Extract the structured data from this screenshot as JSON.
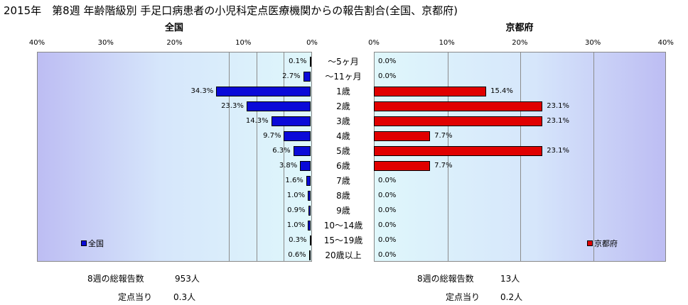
{
  "title": "2015年　第8週 年齢階級別 手足口病患者の小児科定点医療機関からの報告割合(全国、京都府)",
  "colors": {
    "national": "#0a0ad8",
    "kyoto": "#e00000"
  },
  "chart_data": [
    {
      "type": "bar",
      "orientation": "horizontal",
      "title": "全国",
      "xlim": [
        0,
        40
      ],
      "x_reversed": true,
      "ticks": [
        "40%",
        "30%",
        "20%",
        "10%",
        "0%"
      ],
      "categories": [
        "～5ヶ月",
        "～11ヶ月",
        "1歳",
        "2歳",
        "3歳",
        "4歳",
        "5歳",
        "6歳",
        "7歳",
        "8歳",
        "9歳",
        "10～14歳",
        "15～19歳",
        "20歳以上"
      ],
      "series": [
        {
          "name": "全国",
          "values": [
            0.1,
            2.7,
            34.3,
            23.3,
            14.3,
            9.7,
            6.3,
            3.8,
            1.6,
            1.0,
            0.9,
            1.0,
            0.3,
            0.6
          ],
          "labels": [
            "0.1%",
            "2.7%",
            "34.3%",
            "23.3%",
            "14.3%",
            "9.7%",
            "6.3%",
            "3.8%",
            "1.6%",
            "1.0%",
            "0.9%",
            "1.0%",
            "0.3%",
            "0.6%"
          ]
        }
      ],
      "legend_position": "bottom-left",
      "footer": {
        "total_label": "8週の総報告数",
        "total_value": "953人",
        "per_label": "定点当り",
        "per_value": "0.3人"
      }
    },
    {
      "type": "bar",
      "orientation": "horizontal",
      "title": "京都府",
      "xlim": [
        0,
        40
      ],
      "ticks": [
        "0%",
        "10%",
        "20%",
        "30%",
        "40%"
      ],
      "categories": [
        "～5ヶ月",
        "～11ヶ月",
        "1歳",
        "2歳",
        "3歳",
        "4歳",
        "5歳",
        "6歳",
        "7歳",
        "8歳",
        "9歳",
        "10～14歳",
        "15～19歳",
        "20歳以上"
      ],
      "series": [
        {
          "name": "京都府",
          "values": [
            0.0,
            0.0,
            15.4,
            23.1,
            23.1,
            7.7,
            23.1,
            7.7,
            0.0,
            0.0,
            0.0,
            0.0,
            0.0,
            0.0
          ],
          "labels": [
            "0.0%",
            "0.0%",
            "15.4%",
            "23.1%",
            "23.1%",
            "7.7%",
            "23.1%",
            "7.7%",
            "0.0%",
            "0.0%",
            "0.0%",
            "0.0%",
            "0.0%",
            "0.0%"
          ]
        }
      ],
      "legend_position": "bottom-right",
      "footer": {
        "total_label": "8週の総報告数",
        "total_value": "13人",
        "per_label": "定点当り",
        "per_value": "0.2人"
      }
    }
  ]
}
